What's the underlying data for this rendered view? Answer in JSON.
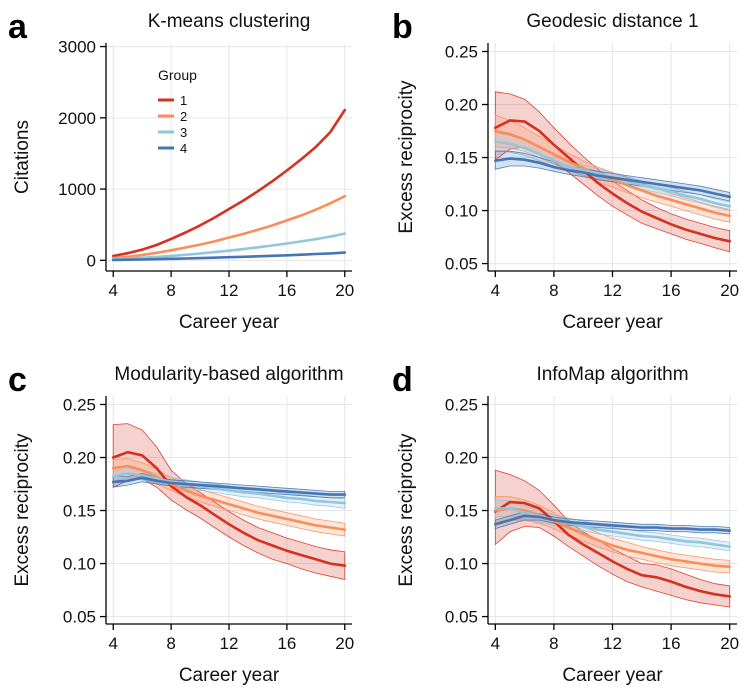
{
  "colors": {
    "g1": "#d7301f",
    "g2": "#fc8d59",
    "g3": "#92c5de",
    "g4": "#4575b4",
    "grid": "#e6e6e6"
  },
  "chart_data": [
    {
      "id": "a",
      "panel_label": "a",
      "type": "line",
      "title": "K-means clustering",
      "xlabel": "Career year",
      "ylabel": "Citations",
      "xlim": [
        3.5,
        20.5
      ],
      "ylim": [
        -150,
        3050
      ],
      "xticks": [
        4,
        8,
        12,
        16,
        20
      ],
      "yticks": [
        0,
        1000,
        2000,
        3000
      ],
      "legend": {
        "title": "Group",
        "position": "top-left",
        "labels": [
          "1",
          "2",
          "3",
          "4"
        ]
      },
      "x": [
        4,
        5,
        6,
        7,
        8,
        9,
        10,
        11,
        12,
        13,
        14,
        15,
        16,
        17,
        18,
        19,
        20
      ],
      "series": [
        {
          "name": "1",
          "color": "g1",
          "values": [
            60,
            100,
            150,
            215,
            300,
            390,
            490,
            600,
            720,
            840,
            970,
            1110,
            1260,
            1420,
            1590,
            1800,
            2110
          ]
        },
        {
          "name": "2",
          "color": "g2",
          "values": [
            30,
            50,
            75,
            105,
            140,
            180,
            220,
            265,
            320,
            370,
            430,
            490,
            560,
            630,
            710,
            800,
            900
          ]
        },
        {
          "name": "3",
          "color": "g3",
          "values": [
            15,
            25,
            35,
            48,
            62,
            78,
            95,
            115,
            135,
            158,
            182,
            208,
            236,
            266,
            298,
            333,
            375
          ]
        },
        {
          "name": "4",
          "color": "g4",
          "values": [
            5,
            8,
            12,
            16,
            21,
            26,
            31,
            37,
            43,
            49,
            56,
            63,
            71,
            79,
            88,
            97,
            108
          ]
        }
      ]
    },
    {
      "id": "b",
      "panel_label": "b",
      "type": "line",
      "title": "Geodesic distance 1",
      "xlabel": "Career year",
      "ylabel": "Excess reciprocity",
      "xlim": [
        3.5,
        20.5
      ],
      "ylim": [
        0.043,
        0.258
      ],
      "xticks": [
        4,
        8,
        12,
        16,
        20
      ],
      "yticks": [
        0.05,
        0.1,
        0.15,
        0.2,
        0.25
      ],
      "x": [
        4,
        5,
        6,
        7,
        8,
        9,
        10,
        11,
        12,
        13,
        14,
        15,
        16,
        17,
        18,
        19,
        20
      ],
      "series": [
        {
          "name": "1",
          "color": "g1",
          "values": [
            0.178,
            0.185,
            0.184,
            0.175,
            0.162,
            0.15,
            0.138,
            0.126,
            0.116,
            0.107,
            0.099,
            0.093,
            0.087,
            0.082,
            0.078,
            0.074,
            0.071
          ],
          "lower": [
            0.148,
            0.158,
            0.16,
            0.154,
            0.146,
            0.136,
            0.125,
            0.114,
            0.104,
            0.096,
            0.088,
            0.083,
            0.078,
            0.073,
            0.069,
            0.065,
            0.061
          ],
          "upper": [
            0.212,
            0.21,
            0.205,
            0.193,
            0.178,
            0.164,
            0.151,
            0.139,
            0.128,
            0.119,
            0.11,
            0.103,
            0.097,
            0.092,
            0.088,
            0.084,
            0.081
          ]
        },
        {
          "name": "2",
          "color": "g2",
          "values": [
            0.175,
            0.172,
            0.167,
            0.16,
            0.153,
            0.146,
            0.14,
            0.134,
            0.129,
            0.124,
            0.119,
            0.114,
            0.11,
            0.106,
            0.102,
            0.098,
            0.095
          ],
          "lower": [
            0.16,
            0.159,
            0.156,
            0.15,
            0.144,
            0.138,
            0.133,
            0.127,
            0.122,
            0.117,
            0.112,
            0.108,
            0.104,
            0.1,
            0.096,
            0.092,
            0.089
          ],
          "upper": [
            0.19,
            0.185,
            0.178,
            0.17,
            0.162,
            0.154,
            0.147,
            0.141,
            0.136,
            0.131,
            0.126,
            0.121,
            0.116,
            0.112,
            0.108,
            0.104,
            0.101
          ]
        },
        {
          "name": "3",
          "color": "g3",
          "values": [
            0.165,
            0.163,
            0.159,
            0.153,
            0.147,
            0.142,
            0.138,
            0.135,
            0.131,
            0.128,
            0.124,
            0.121,
            0.118,
            0.114,
            0.111,
            0.107,
            0.104
          ],
          "lower": [
            0.157,
            0.155,
            0.152,
            0.147,
            0.142,
            0.137,
            0.133,
            0.13,
            0.127,
            0.124,
            0.12,
            0.117,
            0.114,
            0.11,
            0.107,
            0.103,
            0.1
          ],
          "upper": [
            0.173,
            0.171,
            0.166,
            0.159,
            0.152,
            0.147,
            0.143,
            0.14,
            0.135,
            0.132,
            0.128,
            0.125,
            0.122,
            0.118,
            0.115,
            0.111,
            0.108
          ]
        },
        {
          "name": "4",
          "color": "g4",
          "values": [
            0.147,
            0.149,
            0.148,
            0.145,
            0.141,
            0.138,
            0.136,
            0.133,
            0.131,
            0.129,
            0.127,
            0.125,
            0.123,
            0.121,
            0.119,
            0.116,
            0.113
          ],
          "lower": [
            0.139,
            0.142,
            0.142,
            0.14,
            0.137,
            0.134,
            0.132,
            0.129,
            0.127,
            0.125,
            0.123,
            0.121,
            0.119,
            0.117,
            0.115,
            0.112,
            0.109
          ],
          "upper": [
            0.156,
            0.156,
            0.154,
            0.15,
            0.146,
            0.142,
            0.14,
            0.137,
            0.135,
            0.133,
            0.131,
            0.129,
            0.127,
            0.125,
            0.123,
            0.12,
            0.117
          ]
        }
      ]
    },
    {
      "id": "c",
      "panel_label": "c",
      "type": "line",
      "title": "Modularity-based algorithm",
      "xlabel": "Career year",
      "ylabel": "Excess reciprocity",
      "xlim": [
        3.5,
        20.5
      ],
      "ylim": [
        0.043,
        0.258
      ],
      "xticks": [
        4,
        8,
        12,
        16,
        20
      ],
      "yticks": [
        0.05,
        0.1,
        0.15,
        0.2,
        0.25
      ],
      "x": [
        4,
        5,
        6,
        7,
        8,
        9,
        10,
        11,
        12,
        13,
        14,
        15,
        16,
        17,
        18,
        19,
        20
      ],
      "series": [
        {
          "name": "1",
          "color": "g1",
          "values": [
            0.2,
            0.205,
            0.202,
            0.19,
            0.173,
            0.163,
            0.155,
            0.146,
            0.137,
            0.129,
            0.122,
            0.117,
            0.112,
            0.108,
            0.104,
            0.1,
            0.098
          ],
          "lower": [
            0.172,
            0.178,
            0.18,
            0.172,
            0.16,
            0.151,
            0.143,
            0.134,
            0.125,
            0.117,
            0.11,
            0.104,
            0.1,
            0.095,
            0.091,
            0.088,
            0.085
          ],
          "upper": [
            0.231,
            0.232,
            0.226,
            0.21,
            0.188,
            0.176,
            0.167,
            0.158,
            0.149,
            0.141,
            0.134,
            0.129,
            0.124,
            0.12,
            0.116,
            0.113,
            0.111
          ]
        },
        {
          "name": "2",
          "color": "g2",
          "values": [
            0.19,
            0.192,
            0.188,
            0.182,
            0.175,
            0.169,
            0.164,
            0.16,
            0.156,
            0.152,
            0.148,
            0.145,
            0.142,
            0.139,
            0.136,
            0.134,
            0.132
          ],
          "lower": [
            0.182,
            0.184,
            0.181,
            0.175,
            0.169,
            0.163,
            0.158,
            0.154,
            0.15,
            0.146,
            0.142,
            0.139,
            0.136,
            0.133,
            0.13,
            0.128,
            0.126
          ],
          "upper": [
            0.198,
            0.199,
            0.195,
            0.189,
            0.181,
            0.175,
            0.17,
            0.166,
            0.162,
            0.158,
            0.154,
            0.151,
            0.148,
            0.145,
            0.142,
            0.14,
            0.138
          ]
        },
        {
          "name": "3",
          "color": "g3",
          "values": [
            0.182,
            0.185,
            0.183,
            0.18,
            0.177,
            0.175,
            0.173,
            0.171,
            0.169,
            0.167,
            0.166,
            0.164,
            0.162,
            0.161,
            0.159,
            0.158,
            0.157
          ],
          "lower": [
            0.177,
            0.181,
            0.179,
            0.176,
            0.173,
            0.171,
            0.169,
            0.167,
            0.165,
            0.163,
            0.162,
            0.16,
            0.158,
            0.157,
            0.155,
            0.154,
            0.152
          ],
          "upper": [
            0.187,
            0.19,
            0.188,
            0.185,
            0.181,
            0.179,
            0.177,
            0.175,
            0.173,
            0.171,
            0.17,
            0.168,
            0.166,
            0.165,
            0.163,
            0.162,
            0.161
          ]
        },
        {
          "name": "4",
          "color": "g4",
          "values": [
            0.177,
            0.178,
            0.181,
            0.178,
            0.176,
            0.175,
            0.174,
            0.173,
            0.172,
            0.171,
            0.17,
            0.169,
            0.168,
            0.167,
            0.166,
            0.165,
            0.165
          ],
          "lower": [
            0.172,
            0.174,
            0.177,
            0.175,
            0.173,
            0.172,
            0.171,
            0.17,
            0.169,
            0.168,
            0.167,
            0.166,
            0.165,
            0.164,
            0.163,
            0.162,
            0.162
          ],
          "upper": [
            0.182,
            0.182,
            0.185,
            0.181,
            0.179,
            0.178,
            0.177,
            0.176,
            0.175,
            0.174,
            0.173,
            0.172,
            0.171,
            0.17,
            0.169,
            0.168,
            0.168
          ]
        }
      ]
    },
    {
      "id": "d",
      "panel_label": "d",
      "type": "line",
      "title": "InfoMap algorithm",
      "xlabel": "Career year",
      "ylabel": "Excess reciprocity",
      "xlim": [
        3.5,
        20.5
      ],
      "ylim": [
        0.043,
        0.258
      ],
      "xticks": [
        4,
        8,
        12,
        16,
        20
      ],
      "yticks": [
        0.05,
        0.1,
        0.15,
        0.2,
        0.25
      ],
      "x": [
        4,
        5,
        6,
        7,
        8,
        9,
        10,
        11,
        12,
        13,
        14,
        15,
        16,
        17,
        18,
        19,
        20
      ],
      "series": [
        {
          "name": "1",
          "color": "g1",
          "values": [
            0.149,
            0.158,
            0.157,
            0.152,
            0.14,
            0.127,
            0.118,
            0.11,
            0.102,
            0.095,
            0.089,
            0.087,
            0.083,
            0.078,
            0.074,
            0.071,
            0.069
          ],
          "lower": [
            0.118,
            0.13,
            0.135,
            0.134,
            0.126,
            0.116,
            0.107,
            0.098,
            0.09,
            0.083,
            0.078,
            0.074,
            0.07,
            0.066,
            0.063,
            0.061,
            0.059
          ],
          "upper": [
            0.188,
            0.184,
            0.178,
            0.169,
            0.155,
            0.14,
            0.13,
            0.122,
            0.114,
            0.107,
            0.1,
            0.099,
            0.095,
            0.09,
            0.085,
            0.081,
            0.079
          ]
        },
        {
          "name": "2",
          "color": "g2",
          "values": [
            0.15,
            0.152,
            0.15,
            0.146,
            0.14,
            0.134,
            0.128,
            0.122,
            0.117,
            0.113,
            0.11,
            0.107,
            0.104,
            0.102,
            0.1,
            0.098,
            0.097
          ],
          "lower": [
            0.138,
            0.141,
            0.141,
            0.138,
            0.133,
            0.127,
            0.121,
            0.116,
            0.111,
            0.107,
            0.104,
            0.101,
            0.098,
            0.096,
            0.094,
            0.092,
            0.091
          ],
          "upper": [
            0.163,
            0.163,
            0.16,
            0.155,
            0.148,
            0.141,
            0.135,
            0.129,
            0.124,
            0.12,
            0.116,
            0.113,
            0.11,
            0.108,
            0.106,
            0.104,
            0.103
          ]
        },
        {
          "name": "3",
          "color": "g3",
          "values": [
            0.152,
            0.152,
            0.148,
            0.145,
            0.141,
            0.138,
            0.135,
            0.132,
            0.13,
            0.128,
            0.126,
            0.125,
            0.123,
            0.121,
            0.12,
            0.118,
            0.116
          ],
          "lower": [
            0.144,
            0.145,
            0.142,
            0.139,
            0.136,
            0.133,
            0.131,
            0.128,
            0.126,
            0.124,
            0.122,
            0.121,
            0.119,
            0.117,
            0.116,
            0.114,
            0.112
          ],
          "upper": [
            0.16,
            0.159,
            0.154,
            0.15,
            0.146,
            0.143,
            0.14,
            0.137,
            0.134,
            0.132,
            0.13,
            0.129,
            0.127,
            0.125,
            0.124,
            0.122,
            0.12
          ]
        },
        {
          "name": "4",
          "color": "g4",
          "values": [
            0.137,
            0.141,
            0.145,
            0.144,
            0.141,
            0.139,
            0.138,
            0.137,
            0.136,
            0.135,
            0.134,
            0.134,
            0.133,
            0.133,
            0.132,
            0.132,
            0.131
          ],
          "lower": [
            0.133,
            0.137,
            0.141,
            0.141,
            0.138,
            0.136,
            0.135,
            0.134,
            0.133,
            0.132,
            0.131,
            0.131,
            0.13,
            0.13,
            0.129,
            0.129,
            0.128
          ],
          "upper": [
            0.141,
            0.145,
            0.149,
            0.147,
            0.144,
            0.142,
            0.141,
            0.14,
            0.139,
            0.138,
            0.137,
            0.137,
            0.136,
            0.136,
            0.135,
            0.135,
            0.134
          ]
        }
      ]
    }
  ]
}
